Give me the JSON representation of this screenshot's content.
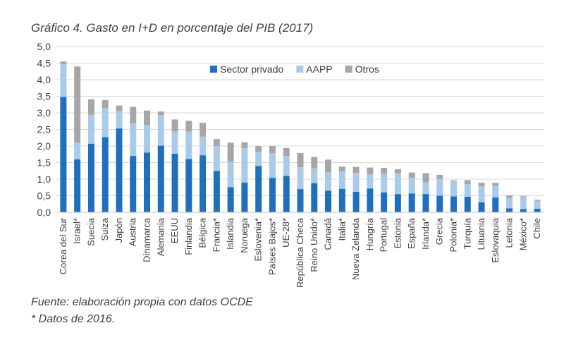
{
  "figure": {
    "title": "Gráfico 4. Gasto en I+D en porcentaje del PIB (2017)",
    "source": "Fuente: elaboración propia con datos OCDE",
    "footnote": "* Datos de 2016."
  },
  "chart_data": {
    "type": "bar",
    "stacked": true,
    "title": "Gráfico 4. Gasto en I+D en porcentaje del PIB (2017)",
    "xlabel": "",
    "ylabel": "",
    "ylim": [
      0,
      5
    ],
    "yticks": [
      "0,0",
      "0,5",
      "1,0",
      "1,5",
      "2,0",
      "2,5",
      "3,0",
      "3,5",
      "4,0",
      "4,5",
      "5,0"
    ],
    "grid": true,
    "legend_position": "top-right",
    "categories": [
      "Corea del Sur",
      "Israel*",
      "Suecia",
      "Suiza",
      "Japón",
      "Austria",
      "Dinamarca",
      "Alemania",
      "EEUU",
      "Finlandia",
      "Bélgica",
      "Francia*",
      "Islandia",
      "Noruega",
      "Eslovenia*",
      "Países Bajos*",
      "UE-28*",
      "República Checa",
      "Reino Unido*",
      "Canadá",
      "Italia*",
      "Nueva Zelanda",
      "Hungría",
      "Portugal",
      "Estonia",
      "España",
      "Irlanda*",
      "Grecia",
      "Polonia*",
      "Turquía",
      "Lituania",
      "Eslovaquia",
      "Letonia",
      "México*",
      "Chile"
    ],
    "series": [
      {
        "name": "Sector privado",
        "color": "#1f6fbf",
        "values": [
          3.48,
          1.6,
          2.07,
          2.27,
          2.53,
          1.7,
          1.8,
          2.01,
          1.77,
          1.61,
          1.72,
          1.25,
          0.76,
          0.9,
          1.4,
          1.04,
          1.1,
          0.7,
          0.88,
          0.65,
          0.71,
          0.62,
          0.72,
          0.6,
          0.55,
          0.57,
          0.55,
          0.5,
          0.48,
          0.47,
          0.3,
          0.45,
          0.12,
          0.1,
          0.11
        ]
      },
      {
        "name": "AAPP",
        "color": "#a9cbea",
        "values": [
          0.99,
          0.5,
          0.87,
          0.88,
          0.52,
          0.98,
          0.83,
          0.92,
          0.67,
          0.82,
          0.56,
          0.75,
          0.76,
          1.03,
          0.42,
          0.74,
          0.6,
          0.66,
          0.45,
          0.55,
          0.52,
          0.57,
          0.42,
          0.56,
          0.63,
          0.47,
          0.35,
          0.51,
          0.45,
          0.38,
          0.48,
          0.35,
          0.31,
          0.38,
          0.24
        ]
      },
      {
        "name": "Otros",
        "color": "#a6a6a6",
        "values": [
          0.08,
          2.3,
          0.47,
          0.24,
          0.17,
          0.5,
          0.44,
          0.11,
          0.36,
          0.33,
          0.42,
          0.21,
          0.58,
          0.18,
          0.18,
          0.22,
          0.24,
          0.43,
          0.34,
          0.39,
          0.15,
          0.18,
          0.21,
          0.18,
          0.12,
          0.16,
          0.28,
          0.12,
          0.03,
          0.12,
          0.11,
          0.09,
          0.08,
          0.02,
          0.03
        ]
      }
    ]
  }
}
